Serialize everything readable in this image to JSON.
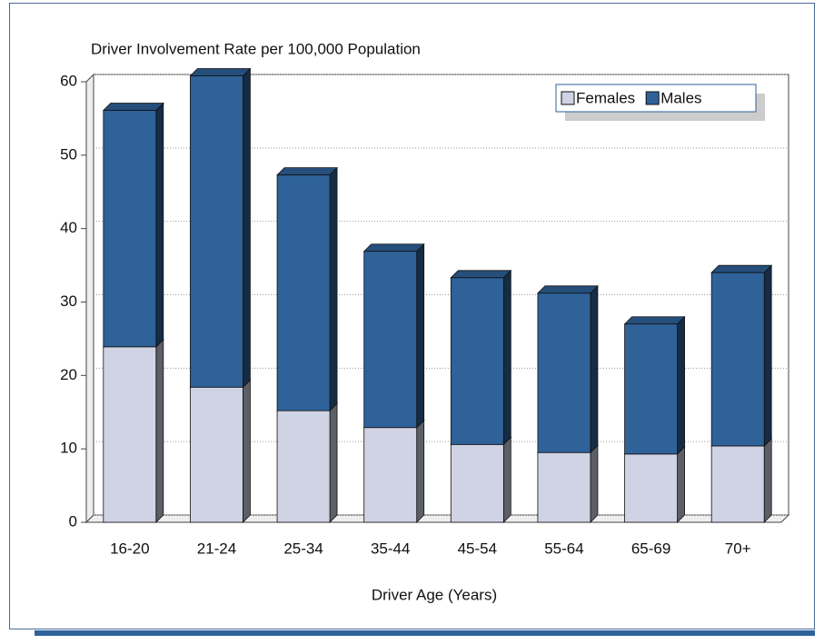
{
  "chart_data": {
    "type": "bar",
    "stacked": true,
    "title": "Driver Involvement Rate per 100,000 Population",
    "x_label": "Driver Age (Years)",
    "categories": [
      "16-20",
      "21-24",
      "25-34",
      "35-44",
      "45-54",
      "55-64",
      "65-69",
      "70+"
    ],
    "series": [
      {
        "name": "Females",
        "color": "#cfd3e3",
        "values": [
          23.9,
          18.4,
          15.2,
          12.9,
          10.6,
          9.5,
          9.3,
          10.4
        ]
      },
      {
        "name": "Males",
        "color": "#2e6299",
        "values": [
          32.2,
          42.4,
          32.1,
          24.0,
          22.7,
          21.7,
          17.7,
          23.6
        ]
      }
    ],
    "ylim": [
      0,
      60
    ],
    "yticks": [
      0,
      10,
      20,
      30,
      40,
      50,
      60
    ],
    "grid": true,
    "legend": "top-right"
  }
}
